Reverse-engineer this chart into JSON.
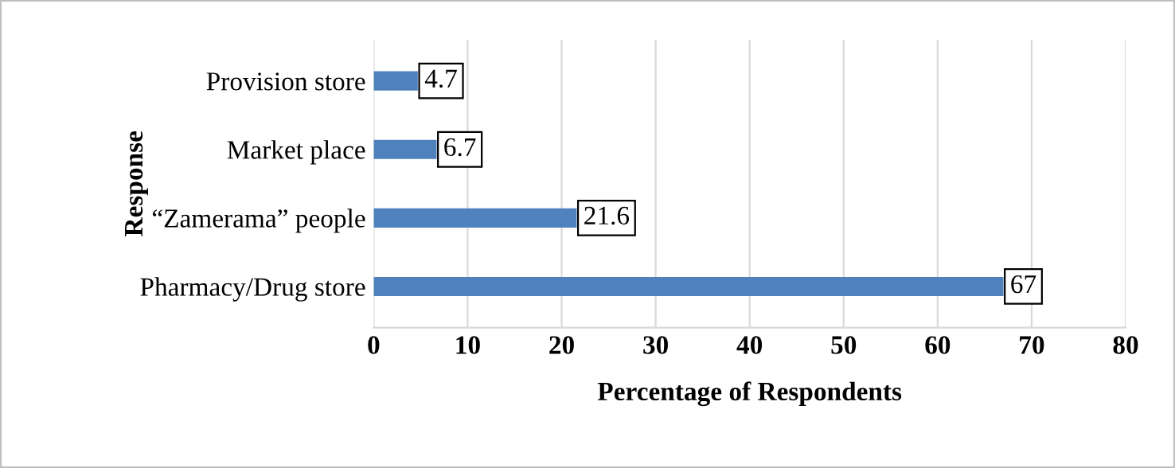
{
  "chart_data": {
    "type": "bar",
    "orientation": "horizontal",
    "categories": [
      "Provision store",
      "Market place",
      "“Zamerama” people",
      "Pharmacy/Drug store"
    ],
    "values": [
      4.7,
      6.7,
      21.6,
      67
    ],
    "color": "#4f81bd",
    "xlim": [
      0,
      80
    ],
    "xticks": [
      0,
      10,
      20,
      30,
      40,
      50,
      60,
      70,
      80
    ],
    "grid": "x",
    "data_labels": true,
    "xlabel": "Percentage of Respondents",
    "ylabel": "Response"
  }
}
